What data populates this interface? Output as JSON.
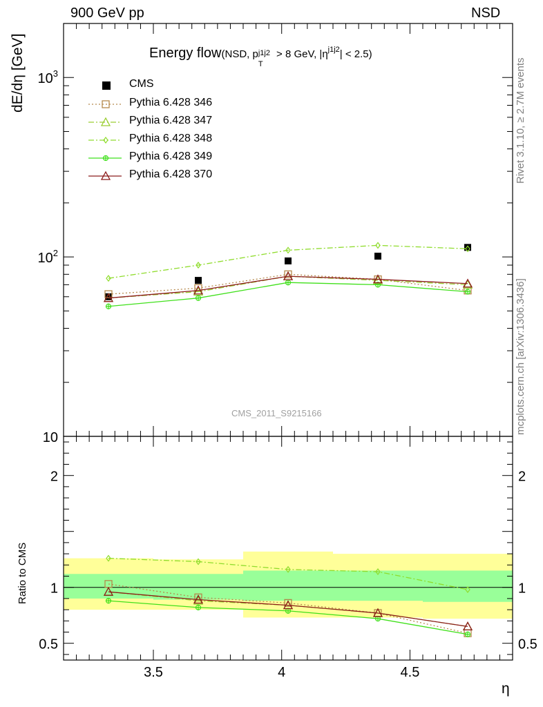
{
  "header": {
    "left": "900 GeV pp",
    "right": "NSD"
  },
  "side_labels": {
    "rivet": "Rivet 3.1.10, ≥ 2.7M events",
    "mcplots": "mcplots.cern.ch [arXiv:1306.3436]"
  },
  "watermark": "CMS_2011_S9215166",
  "plot_title": {
    "main": "Energy flow",
    "paren_open": "(NSD, p",
    "pt_sub": "T",
    "pt_sup": "j1j2",
    "mid": " > 8 GeV, |η",
    "eta_sup": "j1j2",
    "end": "| < 2.5)"
  },
  "chart_data": [
    {
      "type": "line",
      "panel": "main",
      "ylabel": "dE/dη [GeV]",
      "yscale": "log",
      "ylim": [
        10,
        2000
      ],
      "xlim": [
        3.15,
        4.9
      ],
      "ytick_labels": [
        "10",
        "10²",
        "10³"
      ],
      "ytick_values": [
        10,
        100,
        1000
      ],
      "x": [
        3.325,
        3.675,
        4.025,
        4.375,
        4.725
      ],
      "series": [
        {
          "name": "CMS",
          "style": "data",
          "color": "#000000",
          "values": [
            60,
            74,
            95,
            101,
            113
          ]
        },
        {
          "name": "Pythia 6.428 346",
          "style": "dotted",
          "marker": "square",
          "color": "#b5884b",
          "values": [
            62,
            67,
            80,
            75,
            65
          ]
        },
        {
          "name": "Pythia 6.428 347",
          "style": "dashdot",
          "marker": "triangle",
          "color": "#9acd32",
          "values": [
            59,
            64,
            78,
            74,
            70
          ]
        },
        {
          "name": "Pythia 6.428 348",
          "style": "dashdot",
          "marker": "diamond",
          "color": "#8fdc2c",
          "values": [
            76,
            90,
            109,
            116,
            111
          ]
        },
        {
          "name": "Pythia 6.428 349",
          "style": "solid",
          "marker": "cross",
          "color": "#3fe01a",
          "values": [
            53,
            59,
            72,
            70,
            64
          ]
        },
        {
          "name": "Pythia 6.428 370",
          "style": "solid",
          "marker": "triangle",
          "color": "#8b1a1a",
          "values": [
            59,
            65,
            78,
            75,
            71
          ]
        }
      ]
    },
    {
      "type": "line",
      "panel": "ratio",
      "ylabel": "Ratio to CMS",
      "ylim": [
        0.35,
        2.35
      ],
      "xlabel": "η",
      "xlim": [
        3.15,
        4.9
      ],
      "xtick_labels": [
        "3.5",
        "4",
        "4.5"
      ],
      "xtick_values": [
        3.5,
        4.0,
        4.5
      ],
      "ytick_labels": [
        "0.5",
        "1",
        "2"
      ],
      "ytick_values": [
        0.5,
        1.0,
        2.0
      ],
      "x": [
        3.325,
        3.675,
        4.025,
        4.375,
        4.725
      ],
      "bands": {
        "bins": [
          [
            3.15,
            3.5
          ],
          [
            3.5,
            3.85
          ],
          [
            3.85,
            4.2
          ],
          [
            4.2,
            4.55
          ],
          [
            4.55,
            4.9
          ]
        ],
        "yellow": [
          [
            0.8,
            1.26
          ],
          [
            0.8,
            1.25
          ],
          [
            0.73,
            1.32
          ],
          [
            0.73,
            1.3
          ],
          [
            0.72,
            1.3
          ]
        ],
        "green": [
          [
            0.9,
            1.12
          ],
          [
            0.89,
            1.12
          ],
          [
            0.88,
            1.15
          ],
          [
            0.88,
            1.15
          ],
          [
            0.87,
            1.15
          ]
        ],
        "yellow_color": "#ffff99",
        "green_color": "#99ff99"
      },
      "series": [
        {
          "name": "Pythia 6.428 346",
          "style": "dotted",
          "marker": "square",
          "color": "#b5884b",
          "values": [
            1.03,
            0.91,
            0.86,
            0.77,
            0.59
          ]
        },
        {
          "name": "Pythia 6.428 347",
          "style": "dashdot",
          "marker": "triangle",
          "color": "#9acd32",
          "values": [
            0.96,
            0.88,
            0.84,
            0.77,
            0.65
          ]
        },
        {
          "name": "Pythia 6.428 348",
          "style": "dashdot",
          "marker": "diamond",
          "color": "#8fdc2c",
          "values": [
            1.26,
            1.23,
            1.16,
            1.14,
            0.98
          ]
        },
        {
          "name": "Pythia 6.428 349",
          "style": "solid",
          "marker": "cross",
          "color": "#3fe01a",
          "values": [
            0.88,
            0.82,
            0.79,
            0.72,
            0.58
          ]
        },
        {
          "name": "Pythia 6.428 370",
          "style": "solid",
          "marker": "triangle",
          "color": "#8b1a1a",
          "values": [
            0.96,
            0.89,
            0.84,
            0.77,
            0.65
          ]
        }
      ]
    }
  ]
}
